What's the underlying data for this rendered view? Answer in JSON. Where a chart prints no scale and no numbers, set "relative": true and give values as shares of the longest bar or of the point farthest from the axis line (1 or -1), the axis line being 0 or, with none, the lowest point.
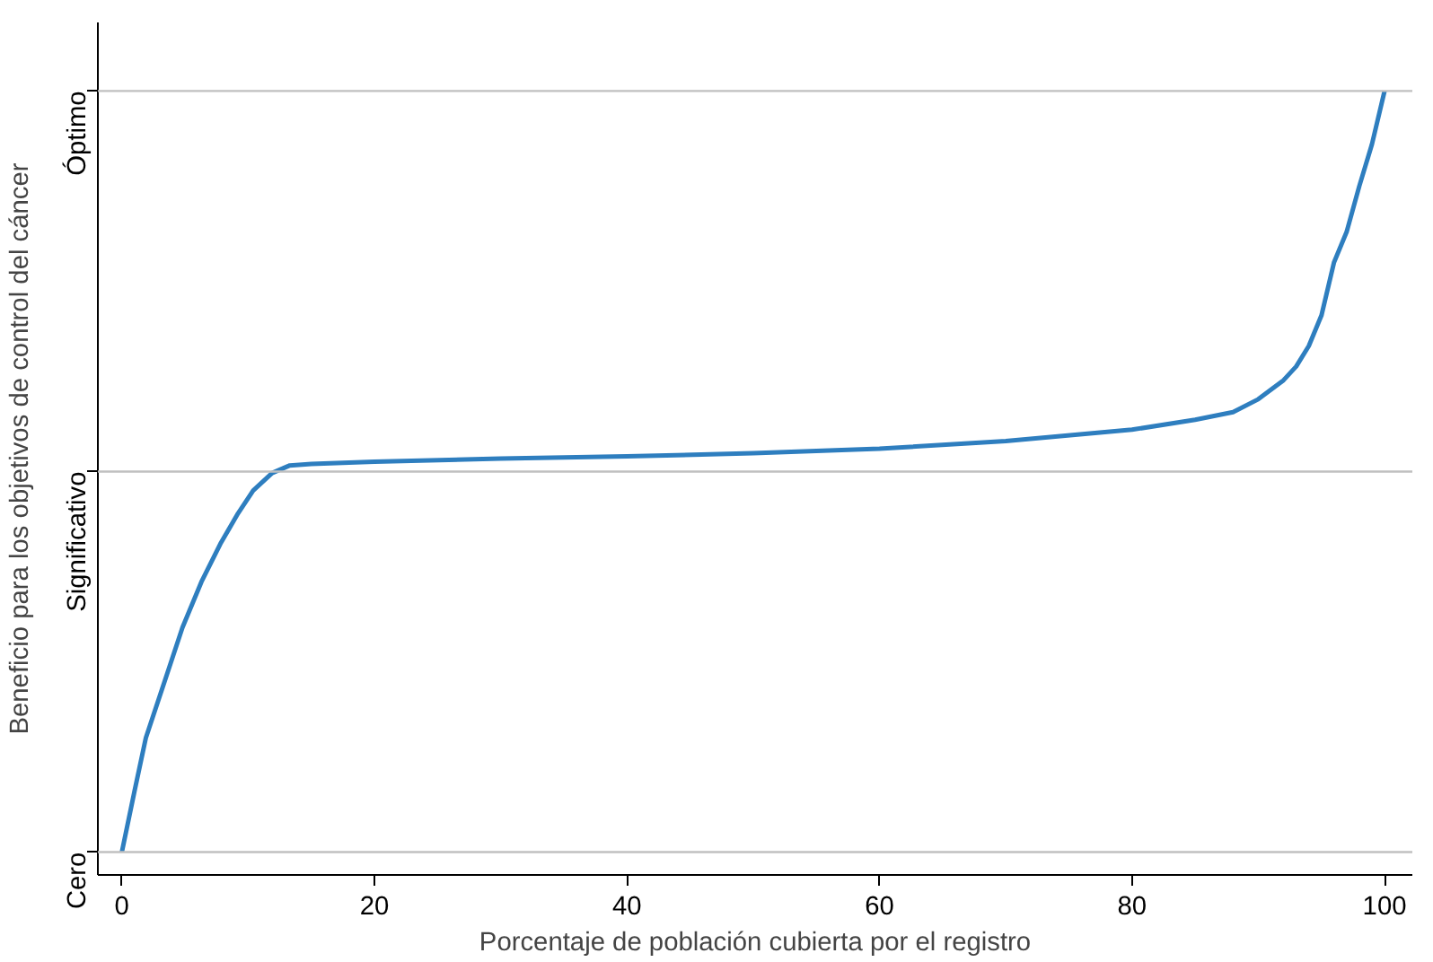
{
  "chart_data": {
    "type": "line",
    "relative": true,
    "xlabel": "Porcentaje de población cubierta por el registro",
    "ylabel": "Beneficio para los objetivos de control del cáncer",
    "x": [
      0,
      1,
      1.9,
      3.4,
      4.8,
      6.3,
      7.8,
      9.2,
      10.4,
      11.9,
      13.3,
      15,
      20,
      30,
      40,
      50,
      60,
      70,
      80,
      85,
      88,
      90,
      92,
      93,
      94,
      95,
      96,
      97,
      98,
      99,
      100
    ],
    "series": [
      {
        "color": "#2e7ebf",
        "values": [
          0,
          0.08,
          0.15,
          0.225,
          0.295,
          0.355,
          0.405,
          0.445,
          0.475,
          0.498,
          0.508,
          0.51,
          0.513,
          0.517,
          0.52,
          0.524,
          0.53,
          0.54,
          0.555,
          0.568,
          0.578,
          0.595,
          0.62,
          0.638,
          0.665,
          0.705,
          0.775,
          0.815,
          0.875,
          0.93,
          1.0
        ]
      }
    ],
    "xlim": [
      -1.9,
      102.2
    ],
    "xticks": [
      0,
      20,
      40,
      60,
      80,
      100
    ],
    "ref_lines": [
      {
        "axis": "y",
        "value": 0,
        "label": "Cero",
        "color": "#c0c0c0"
      },
      {
        "axis": "y",
        "value": 0.5,
        "label": "Significativo",
        "color": "#c0c0c0"
      },
      {
        "axis": "y",
        "value": 1,
        "label": "Óptimo",
        "color": "#c0c0c0"
      }
    ],
    "marker": "none",
    "line_style": "solid"
  }
}
